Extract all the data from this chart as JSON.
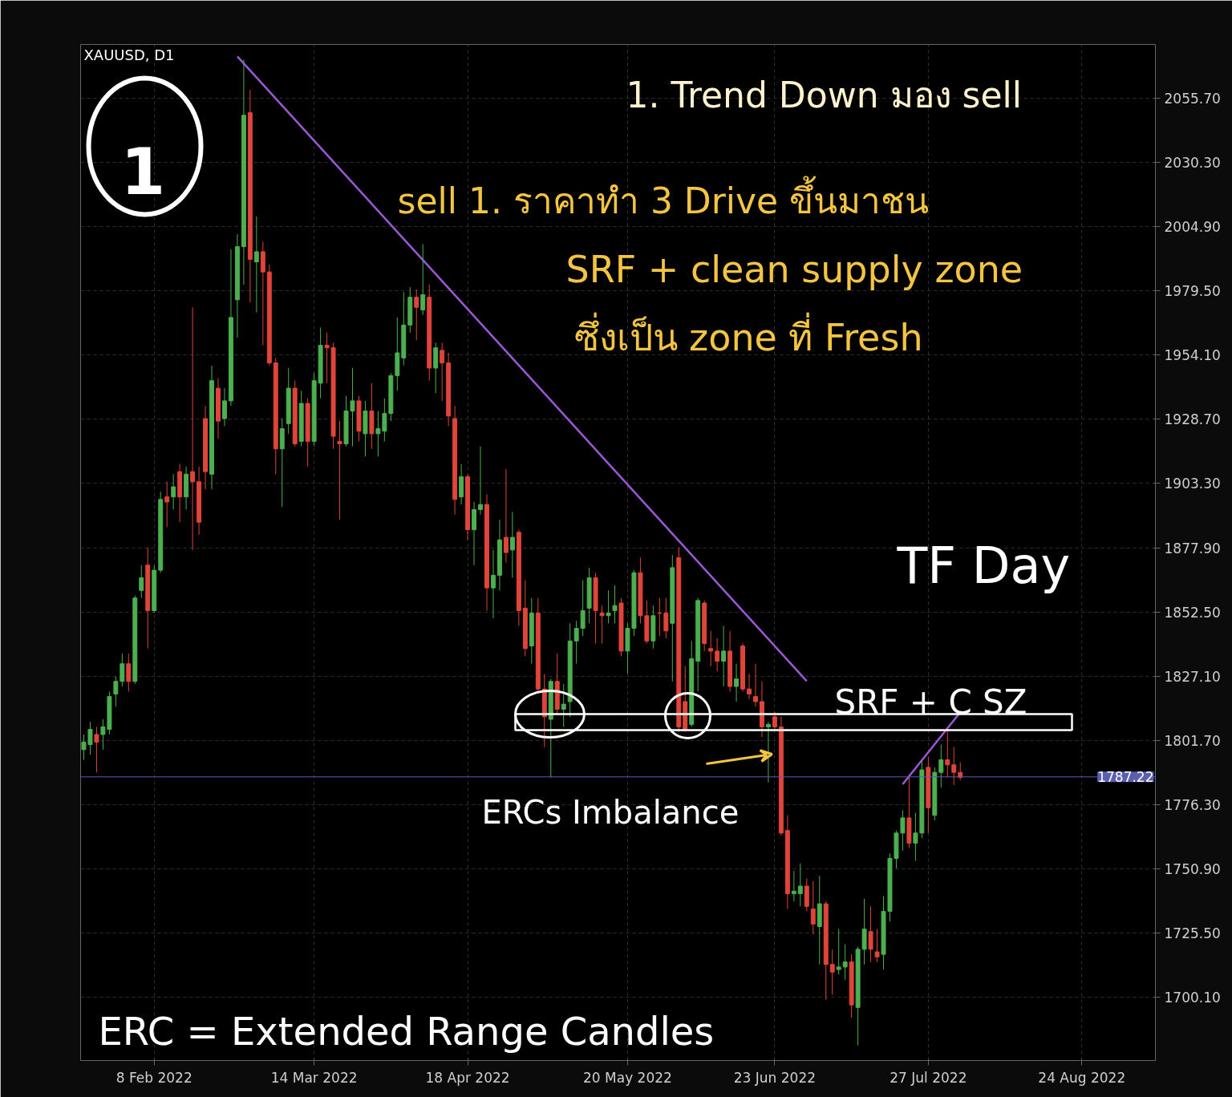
{
  "chart_data": {
    "type": "candlestick",
    "title": "XAUUSD, D1",
    "categories": [
      null,
      null,
      null,
      null,
      null,
      null,
      null,
      null,
      null,
      null,
      null,
      "8 Feb 2022",
      null,
      null,
      null,
      null,
      null,
      null,
      null,
      null,
      null,
      null,
      null,
      null,
      null,
      null,
      null,
      null,
      null,
      null,
      null,
      null,
      null,
      null,
      null,
      null,
      "14 Mar 2022",
      null,
      null,
      null,
      null,
      null,
      null,
      null,
      null,
      null,
      null,
      null,
      null,
      null,
      null,
      null,
      null,
      null,
      null,
      null,
      null,
      null,
      null,
      null,
      "18 Apr 2022",
      null,
      null,
      null,
      null,
      null,
      null,
      null,
      null,
      null,
      null,
      null,
      null,
      null,
      null,
      null,
      null,
      null,
      null,
      null,
      null,
      null,
      null,
      null,
      null,
      "20 May 2022",
      null,
      null,
      null,
      null,
      null,
      null,
      null,
      null,
      null,
      null,
      null,
      null,
      null,
      null,
      null,
      null,
      null,
      null,
      null,
      null,
      null,
      null,
      "23 Jun 2022",
      null,
      null,
      null,
      null,
      null,
      null,
      null,
      null,
      null,
      null,
      null,
      null,
      null,
      null,
      null,
      null,
      null,
      null,
      null,
      null,
      null,
      null,
      null,
      "27 Jul 2022",
      null,
      null,
      null,
      null,
      null,
      null,
      null,
      null,
      null,
      null,
      null,
      null,
      null,
      null,
      null,
      null,
      null,
      null,
      null,
      null,
      null,
      null,
      null,
      "24 Aug 2022",
      null,
      null,
      null,
      null,
      null,
      null,
      null,
      null,
      null,
      null,
      null
    ],
    "ohlc": [
      [
        1798,
        1804,
        1794,
        1801
      ],
      [
        1800,
        1809,
        1796,
        1806
      ],
      [
        1804,
        1807,
        1789,
        1801
      ],
      [
        1804,
        1810,
        1798,
        1807
      ],
      [
        1806,
        1821,
        1804,
        1819
      ],
      [
        1820,
        1827,
        1815,
        1825
      ],
      [
        1825,
        1836,
        1823,
        1832
      ],
      [
        1832,
        1836,
        1821,
        1825
      ],
      [
        1825,
        1859,
        1824,
        1858
      ],
      [
        1861,
        1871,
        1858,
        1866
      ],
      [
        1871,
        1878,
        1838,
        1853
      ],
      [
        1853,
        1871,
        1852,
        1869
      ],
      [
        1869,
        1900,
        1868,
        1897
      ],
      [
        1898,
        1904,
        1886,
        1896
      ],
      [
        1898,
        1907,
        1893,
        1902
      ],
      [
        1908,
        1911,
        1888,
        1898
      ],
      [
        1898,
        1910,
        1893,
        1907
      ],
      [
        1908,
        1973,
        1877,
        1904
      ],
      [
        1904,
        1910,
        1883,
        1888
      ],
      [
        1929,
        1934,
        1901,
        1908
      ],
      [
        1907,
        1950,
        1901,
        1944
      ],
      [
        1941,
        1945,
        1921,
        1928
      ],
      [
        1929,
        1941,
        1926,
        1936
      ],
      [
        1936,
        1996,
        1934,
        1969
      ],
      [
        1976,
        2002,
        1961,
        1997
      ],
      [
        1997,
        2071,
        1982,
        2049
      ],
      [
        2050,
        2059,
        1975,
        1992
      ],
      [
        1991,
        2009,
        1971,
        1995
      ],
      [
        1995,
        1999,
        1958,
        1987
      ],
      [
        1987,
        1990,
        1950,
        1951
      ],
      [
        1951,
        1953,
        1907,
        1917
      ],
      [
        1917,
        1929,
        1894,
        1925
      ],
      [
        1927,
        1949,
        1923,
        1941
      ],
      [
        1941,
        1944,
        1918,
        1919
      ],
      [
        1920,
        1940,
        1918,
        1935
      ],
      [
        1935,
        1937,
        1910,
        1920
      ],
      [
        1920,
        1947,
        1918,
        1944
      ],
      [
        1943,
        1965,
        1937,
        1958
      ],
      [
        1958,
        1963,
        1943,
        1957
      ],
      [
        1957,
        1959,
        1917,
        1922
      ],
      [
        1920,
        1928,
        1889,
        1919
      ],
      [
        1919,
        1938,
        1918,
        1932
      ],
      [
        1932,
        1949,
        1918,
        1936
      ],
      [
        1936,
        1938,
        1920,
        1924
      ],
      [
        1923,
        1936,
        1914,
        1932
      ],
      [
        1932,
        1943,
        1917,
        1923
      ],
      [
        1923,
        1932,
        1914,
        1925
      ],
      [
        1924,
        1937,
        1920,
        1931
      ],
      [
        1931,
        1947,
        1928,
        1946
      ],
      [
        1946,
        1969,
        1940,
        1955
      ],
      [
        1953,
        1979,
        1950,
        1966
      ],
      [
        1966,
        1981,
        1963,
        1977
      ],
      [
        1977,
        1980,
        1960,
        1973
      ],
      [
        1972,
        1998,
        1970,
        1978
      ],
      [
        1977,
        1982,
        1944,
        1949
      ],
      [
        1949,
        1959,
        1939,
        1957
      ],
      [
        1956,
        1959,
        1936,
        1951
      ],
      [
        1951,
        1955,
        1926,
        1930
      ],
      [
        1929,
        1934,
        1891,
        1897
      ],
      [
        1898,
        1911,
        1895,
        1906
      ],
      [
        1906,
        1907,
        1881,
        1885
      ],
      [
        1885,
        1896,
        1871,
        1893
      ],
      [
        1893,
        1918,
        1891,
        1895
      ],
      [
        1895,
        1899,
        1853,
        1862
      ],
      [
        1862,
        1877,
        1850,
        1867
      ],
      [
        1867,
        1889,
        1861,
        1881
      ],
      [
        1882,
        1909,
        1872,
        1876
      ],
      [
        1877,
        1892,
        1866,
        1882
      ],
      [
        1884,
        1885,
        1847,
        1853
      ],
      [
        1854,
        1865,
        1835,
        1838
      ],
      [
        1839,
        1858,
        1832,
        1852
      ],
      [
        1852,
        1858,
        1821,
        1822
      ],
      [
        1822,
        1828,
        1799,
        1811
      ],
      [
        1810,
        1826,
        1787,
        1825
      ],
      [
        1825,
        1836,
        1812,
        1814
      ],
      [
        1814,
        1824,
        1807,
        1816
      ],
      [
        1817,
        1848,
        1811,
        1841
      ],
      [
        1841,
        1849,
        1832,
        1846
      ],
      [
        1846,
        1865,
        1843,
        1853
      ],
      [
        1854,
        1870,
        1848,
        1866
      ],
      [
        1866,
        1868,
        1840,
        1853
      ],
      [
        1852,
        1855,
        1840,
        1851
      ],
      [
        1851,
        1861,
        1848,
        1852
      ],
      [
        1853,
        1863,
        1848,
        1855
      ],
      [
        1856,
        1858,
        1835,
        1837
      ],
      [
        1837,
        1848,
        1828,
        1846
      ],
      [
        1846,
        1869,
        1843,
        1868
      ],
      [
        1868,
        1874,
        1848,
        1851
      ],
      [
        1851,
        1857,
        1840,
        1841
      ],
      [
        1841,
        1855,
        1838,
        1851
      ],
      [
        1852,
        1858,
        1843,
        1852
      ],
      [
        1852,
        1858,
        1842,
        1845
      ],
      [
        1848,
        1875,
        1825,
        1870
      ],
      [
        1874,
        1878,
        1805,
        1807
      ],
      [
        1817,
        1831,
        1805,
        1806
      ],
      [
        1808,
        1841,
        1807,
        1834
      ],
      [
        1833,
        1858,
        1821,
        1857
      ],
      [
        1856,
        1857,
        1837,
        1840
      ],
      [
        1838,
        1845,
        1831,
        1837
      ],
      [
        1837,
        1842,
        1829,
        1833
      ],
      [
        1833,
        1847,
        1823,
        1837
      ],
      [
        1837,
        1845,
        1821,
        1823
      ],
      [
        1823,
        1832,
        1817,
        1826
      ],
      [
        1839,
        1840,
        1821,
        1822
      ],
      [
        1822,
        1828,
        1818,
        1820
      ],
      [
        1819,
        1832,
        1815,
        1817
      ],
      [
        1817,
        1825,
        1803,
        1807
      ],
      [
        1807,
        1809,
        1785,
        1808
      ],
      [
        1811,
        1813,
        1806,
        1807
      ],
      [
        1807,
        1811,
        1764,
        1765
      ],
      [
        1766,
        1772,
        1735,
        1741
      ],
      [
        1741,
        1750,
        1738,
        1742
      ],
      [
        1741,
        1753,
        1736,
        1744
      ],
      [
        1744,
        1747,
        1734,
        1736
      ],
      [
        1735,
        1746,
        1725,
        1729
      ],
      [
        1728,
        1748,
        1713,
        1737
      ],
      [
        1737,
        1738,
        1699,
        1713
      ],
      [
        1713,
        1719,
        1701,
        1710
      ],
      [
        1711,
        1727,
        1709,
        1712
      ],
      [
        1712,
        1721,
        1707,
        1714
      ],
      [
        1714,
        1717,
        1692,
        1697
      ],
      [
        1696,
        1720,
        1681,
        1719
      ],
      [
        1719,
        1739,
        1713,
        1727
      ],
      [
        1726,
        1736,
        1714,
        1719
      ],
      [
        1718,
        1727,
        1714,
        1716
      ],
      [
        1717,
        1740,
        1711,
        1734
      ],
      [
        1734,
        1757,
        1730,
        1755
      ],
      [
        1755,
        1766,
        1751,
        1765
      ],
      [
        1765,
        1774,
        1758,
        1771
      ],
      [
        1771,
        1787,
        1759,
        1761
      ],
      [
        1761,
        1773,
        1754,
        1765
      ],
      [
        1765,
        1794,
        1763,
        1790
      ],
      [
        1791,
        1795,
        1765,
        1775
      ],
      [
        1772,
        1791,
        1770,
        1789
      ],
      [
        1789,
        1800,
        1783,
        1794
      ],
      [
        1794,
        1807,
        1787,
        1792
      ],
      [
        1792,
        1799,
        1784,
        1789
      ],
      [
        1789,
        1793,
        1786,
        1787
      ],
      null,
      null,
      null,
      null,
      null,
      null,
      null,
      null,
      null,
      null,
      null,
      null,
      null,
      null,
      null,
      null,
      null,
      null,
      null,
      null,
      null,
      null,
      null,
      null,
      null,
      null,
      null,
      null,
      null,
      null
    ],
    "colors": [
      "#4caf50",
      "#4caf50",
      "#e0443a",
      "#4caf50",
      "#4caf50",
      "#4caf50",
      "#4caf50",
      "#e0443a",
      "#4caf50",
      "#4caf50",
      "#e0443a",
      "#4caf50",
      "#4caf50",
      "#e0443a",
      "#4caf50",
      "#e0443a",
      "#4caf50",
      "#e0443a",
      "#e0443a",
      "#e0443a",
      "#4caf50",
      "#e0443a",
      "#4caf50",
      "#4caf50",
      "#4caf50",
      "#4caf50",
      "#e0443a",
      "#4caf50",
      "#e0443a",
      "#e0443a",
      "#e0443a",
      "#4caf50",
      "#4caf50",
      "#e0443a",
      "#4caf50",
      "#e0443a",
      "#4caf50",
      "#4caf50",
      "#e0443a",
      "#e0443a",
      "#e0443a",
      "#4caf50",
      "#4caf50",
      "#e0443a",
      "#4caf50",
      "#e0443a",
      "#4caf50",
      "#4caf50",
      "#4caf50",
      "#4caf50",
      "#4caf50",
      "#4caf50",
      "#e0443a",
      "#4caf50",
      "#e0443a",
      "#4caf50",
      "#e0443a",
      "#e0443a",
      "#e0443a",
      "#4caf50",
      "#e0443a",
      "#4caf50",
      "#4caf50",
      "#e0443a",
      "#4caf50",
      "#4caf50",
      "#e0443a",
      "#4caf50",
      "#e0443a",
      "#e0443a",
      "#4caf50",
      "#e0443a",
      "#e0443a",
      "#4caf50",
      "#e0443a",
      "#4caf50",
      "#4caf50",
      "#4caf50",
      "#4caf50",
      "#4caf50",
      "#e0443a",
      "#e0443a",
      "#4caf50",
      "#4caf50",
      "#e0443a",
      "#4caf50",
      "#4caf50",
      "#e0443a",
      "#e0443a",
      "#4caf50",
      "#e0443a",
      "#e0443a",
      "#4caf50",
      "#e0443a",
      "#e0443a",
      "#4caf50",
      "#4caf50",
      "#e0443a",
      "#e0443a",
      "#e0443a",
      "#4caf50",
      "#e0443a",
      "#4caf50",
      "#e0443a",
      "#e0443a",
      "#e0443a",
      "#e0443a",
      "#4caf50",
      "#e0443a",
      "#e0443a",
      "#e0443a",
      "#4caf50",
      "#4caf50",
      "#e0443a",
      "#e0443a",
      "#4caf50",
      "#e0443a",
      "#e0443a",
      "#4caf50",
      "#4caf50",
      "#e0443a",
      "#4caf50",
      "#4caf50",
      "#e0443a",
      "#e0443a",
      "#4caf50",
      "#4caf50",
      "#4caf50",
      "#4caf50",
      "#e0443a",
      "#4caf50",
      "#4caf50",
      "#e0443a",
      "#4caf50",
      "#4caf50",
      "#e0443a",
      "#e0443a",
      "#e0443a",
      null,
      null,
      null,
      null,
      null,
      null,
      null,
      null,
      null,
      null,
      null,
      null,
      null,
      null,
      null,
      null,
      null,
      null,
      null,
      null,
      null,
      null,
      null,
      null,
      null,
      null,
      null,
      null,
      null,
      null
    ],
    "series": [
      {
        "type": "line",
        "color": "#9b59d6",
        "values": [
          null,
          null,
          null,
          null,
          null,
          null,
          null,
          null,
          null,
          null,
          null,
          null,
          null,
          null,
          null,
          null,
          null,
          null,
          null,
          null,
          null,
          null,
          null,
          null,
          2072.3,
          null,
          null,
          null,
          null,
          null,
          null,
          null,
          null,
          null,
          null,
          null,
          null,
          null,
          null,
          null,
          null,
          null,
          null,
          null,
          null,
          null,
          null,
          null,
          null,
          null,
          null,
          null,
          null,
          null,
          null,
          null,
          null,
          null,
          null,
          null,
          null,
          null,
          null,
          null,
          null,
          null,
          null,
          null,
          null,
          null,
          null,
          null,
          null,
          null,
          null,
          null,
          null,
          null,
          null,
          null,
          null,
          null,
          null,
          null,
          null,
          null,
          null,
          null,
          null,
          null,
          null,
          null,
          null,
          null,
          null,
          null,
          null,
          null,
          null,
          null,
          null,
          null,
          null,
          null,
          null,
          null,
          null,
          null,
          null,
          null,
          null,
          null,
          null,
          1825.1,
          null,
          null,
          null,
          null,
          null,
          null,
          null,
          null,
          null,
          null,
          null,
          null,
          null,
          null,
          null,
          null,
          null,
          null,
          null,
          null,
          null,
          null,
          null,
          null,
          null,
          null,
          null,
          null,
          null,
          null,
          null,
          null,
          null,
          null,
          null,
          null,
          null,
          null,
          null,
          null,
          null,
          null,
          null,
          null,
          null,
          null,
          null,
          null,
          null,
          null,
          null,
          null,
          null,
          null
        ]
      },
      {
        "type": "line",
        "color": "#9b59d6",
        "values": [
          null,
          null,
          null,
          null,
          null,
          null,
          null,
          null,
          null,
          null,
          null,
          null,
          null,
          null,
          null,
          null,
          null,
          null,
          null,
          null,
          null,
          null,
          null,
          null,
          null,
          null,
          null,
          null,
          null,
          null,
          null,
          null,
          null,
          null,
          null,
          null,
          null,
          null,
          null,
          null,
          null,
          null,
          null,
          null,
          null,
          null,
          null,
          null,
          null,
          null,
          null,
          null,
          null,
          null,
          null,
          null,
          null,
          null,
          null,
          null,
          null,
          null,
          null,
          null,
          null,
          null,
          null,
          null,
          null,
          null,
          null,
          null,
          null,
          null,
          null,
          null,
          null,
          null,
          null,
          null,
          null,
          null,
          null,
          null,
          null,
          null,
          null,
          null,
          null,
          null,
          null,
          null,
          null,
          null,
          null,
          null,
          null,
          null,
          null,
          null,
          null,
          null,
          null,
          null,
          null,
          null,
          null,
          null,
          null,
          null,
          null,
          null,
          null,
          null,
          null,
          null,
          null,
          null,
          null,
          null,
          null,
          null,
          null,
          null,
          null,
          null,
          null,
          null,
          1784.3,
          null,
          null,
          null,
          null,
          null,
          null,
          null,
          null,
          1812.8,
          null,
          null,
          null,
          null,
          null,
          null,
          null,
          null,
          null,
          null,
          null,
          null,
          null,
          null,
          null,
          null,
          null,
          null,
          null,
          null,
          null,
          null,
          null,
          null,
          null,
          null,
          null,
          null,
          null,
          null
        ]
      }
    ],
    "ylim": [
      1675.0,
      2077.0
    ],
    "yticks": [
      {
        "value": 1700.1,
        "label": "1700.10"
      },
      {
        "value": 1725.5,
        "label": "1725.50"
      },
      {
        "value": 1750.9,
        "label": "1750.90"
      },
      {
        "value": 1776.3,
        "label": "1776.30"
      },
      {
        "value": 1801.7,
        "label": "1801.70"
      },
      {
        "value": 1827.1,
        "label": "1827.10"
      },
      {
        "value": 1852.5,
        "label": "1852.50"
      },
      {
        "value": 1877.9,
        "label": "1877.90"
      },
      {
        "value": 1903.3,
        "label": "1903.30"
      },
      {
        "value": 1928.7,
        "label": "1928.70"
      },
      {
        "value": 1954.1,
        "label": "1954.10"
      },
      {
        "value": 1979.5,
        "label": "1979.50"
      },
      {
        "value": 2004.9,
        "label": "2004.90"
      },
      {
        "value": 2030.3,
        "label": "2030.30"
      },
      {
        "value": 2055.7,
        "label": "2055.70"
      }
    ],
    "ref_lines": [
      {
        "axis": "y",
        "value": 1787.22,
        "label": "1787.22",
        "color": "#5a5fb0"
      }
    ],
    "grid": true,
    "annotations": [
      "1",
      "1. Trend Down มอง sell",
      "sell 1. ราคาทำ 3 Drive ขึ้นมาชน",
      "SRF + clean supply zone",
      "ซึ่งเป็น zone ที่ Fresh",
      "TF Day",
      "SRF + C SZ",
      "ERCs Imbalance",
      "ERC = Extended Range Candles"
    ]
  }
}
